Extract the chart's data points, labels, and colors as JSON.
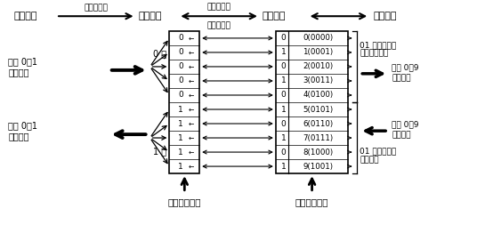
{
  "bg_color": "#ffffff",
  "top_mingwen": "明文数据",
  "top_arrow1_label": "离散化映射",
  "top_hunsuan": "混沌编码",
  "top_arrow2_top": "模糊化映射",
  "top_arrow2_bot": "混沌逆映射",
  "top_xuhao": "序号编码",
  "top_miwen": "密文数据",
  "pole0": "0 极",
  "pole1": "1 极",
  "input_label1": "输入 0、1",
  "input_label2": "明文数据",
  "output_label1": "输出 0、1",
  "output_label2": "明文数据",
  "left_box_values": [
    "0",
    "0",
    "0",
    "0",
    "0",
    "1",
    "1",
    "1",
    "1",
    "1"
  ],
  "right_box_prefixes": [
    "0",
    "1",
    "0",
    "1",
    "0",
    "1",
    "0",
    "1",
    "0",
    "1"
  ],
  "right_box_values": [
    "0(0000)",
    "1(0001)",
    "2(0010)",
    "3(0011)",
    "4(0100)",
    "5(0101)",
    "6(0110)",
    "7(0111)",
    "8(1000)",
    "9(1001)"
  ],
  "prng_label1": "01 二进制数的",
  "prng_label2": "伪随机数生成",
  "out_cipher1": "输出 0～9",
  "out_cipher2": "密文数据",
  "in_cipher1": "输入 0～9",
  "in_cipher2": "密文数据",
  "state_label1": "01 二进制数的",
  "state_label2": "状态反馈",
  "chaos_param": "混沌参数调制",
  "random_param": "随机参数调制"
}
